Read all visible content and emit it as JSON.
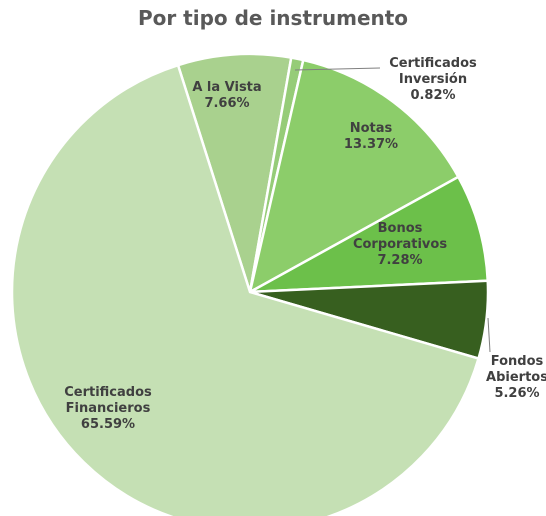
{
  "chart_data": {
    "type": "pie",
    "title": "Por tipo de instrumento",
    "categories": [
      "A la Vista",
      "Certificados Inversión",
      "Notas",
      "Bonos Corporativos",
      "Fondos Abiertos",
      "Certificados Financieros"
    ],
    "values": [
      7.66,
      0.82,
      13.37,
      7.28,
      5.26,
      65.59
    ],
    "value_labels": [
      "7.66%",
      "0.82%",
      "13.37%",
      "7.28%",
      "5.26%",
      "65.59%"
    ],
    "colors": [
      "#a9d18e",
      "#96cc78",
      "#8ccd6a",
      "#6cc04a",
      "#375f1f",
      "#c5e0b4"
    ]
  }
}
